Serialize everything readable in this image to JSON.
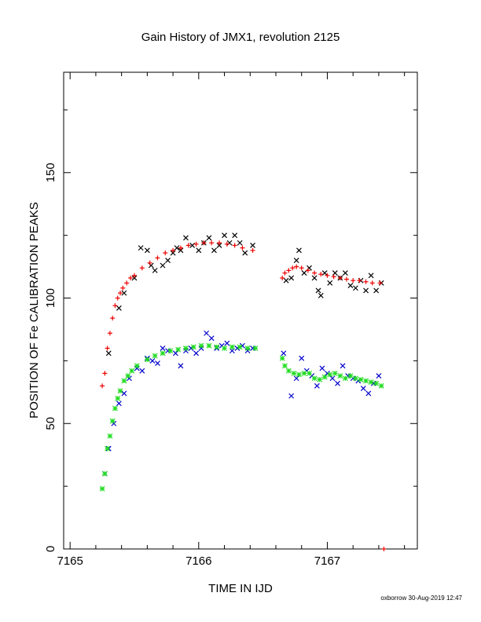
{
  "footer": "oxborrow 30-Aug-2019 12:47",
  "chart_data": {
    "type": "scatter",
    "title": "Gain History of JMX1, revolution 2125",
    "xlabel": "TIME IN IJD",
    "ylabel": "POSITION OF Fe CALIBRATION PEAKS",
    "xlim": [
      7164.95,
      7167.7
    ],
    "ylim": [
      0,
      190
    ],
    "xticks": [
      7165,
      7166,
      7167
    ],
    "yticks": [
      0,
      50,
      100,
      150
    ],
    "grid": false,
    "series": [
      {
        "marker": "x",
        "color": "#000000",
        "points": [
          [
            7165.3,
            78
          ],
          [
            7165.38,
            96
          ],
          [
            7165.42,
            102
          ],
          [
            7165.5,
            108
          ],
          [
            7165.55,
            120
          ],
          [
            7165.6,
            119
          ],
          [
            7165.63,
            113
          ],
          [
            7165.66,
            111
          ],
          [
            7165.72,
            113
          ],
          [
            7165.76,
            115
          ],
          [
            7165.8,
            118
          ],
          [
            7165.83,
            120
          ],
          [
            7165.86,
            119
          ],
          [
            7165.9,
            124
          ],
          [
            7165.95,
            121
          ],
          [
            7166.0,
            119
          ],
          [
            7166.04,
            122
          ],
          [
            7166.08,
            124
          ],
          [
            7166.12,
            119
          ],
          [
            7166.16,
            121
          ],
          [
            7166.2,
            125
          ],
          [
            7166.24,
            122
          ],
          [
            7166.28,
            125
          ],
          [
            7166.32,
            122
          ],
          [
            7166.36,
            118
          ],
          [
            7166.42,
            121
          ],
          [
            7166.68,
            107
          ],
          [
            7166.72,
            108
          ],
          [
            7166.76,
            115
          ],
          [
            7166.78,
            119
          ],
          [
            7166.82,
            110
          ],
          [
            7166.86,
            112
          ],
          [
            7166.9,
            108
          ],
          [
            7166.93,
            103
          ],
          [
            7166.95,
            101
          ],
          [
            7166.98,
            110
          ],
          [
            7167.02,
            106
          ],
          [
            7167.06,
            110
          ],
          [
            7167.1,
            108
          ],
          [
            7167.14,
            110
          ],
          [
            7167.18,
            105
          ],
          [
            7167.22,
            104
          ],
          [
            7167.26,
            107
          ],
          [
            7167.3,
            103
          ],
          [
            7167.34,
            109
          ],
          [
            7167.38,
            103
          ],
          [
            7167.42,
            106
          ]
        ]
      },
      {
        "marker": "+",
        "color": "#ee0000",
        "points": [
          [
            7165.25,
            65
          ],
          [
            7165.27,
            70
          ],
          [
            7165.29,
            80
          ],
          [
            7165.31,
            86
          ],
          [
            7165.33,
            92
          ],
          [
            7165.35,
            97
          ],
          [
            7165.37,
            100
          ],
          [
            7165.39,
            102
          ],
          [
            7165.41,
            104
          ],
          [
            7165.44,
            106
          ],
          [
            7165.47,
            108
          ],
          [
            7165.5,
            109
          ],
          [
            7165.56,
            112
          ],
          [
            7165.62,
            114
          ],
          [
            7165.68,
            116
          ],
          [
            7165.74,
            118
          ],
          [
            7165.8,
            119
          ],
          [
            7165.86,
            120
          ],
          [
            7165.92,
            121
          ],
          [
            7165.98,
            121.5
          ],
          [
            7166.04,
            122
          ],
          [
            7166.1,
            122
          ],
          [
            7166.16,
            122
          ],
          [
            7166.22,
            121.5
          ],
          [
            7166.28,
            121
          ],
          [
            7166.34,
            120
          ],
          [
            7166.42,
            119
          ],
          [
            7166.65,
            108
          ],
          [
            7166.67,
            110
          ],
          [
            7166.7,
            111
          ],
          [
            7166.73,
            112
          ],
          [
            7166.76,
            112.5
          ],
          [
            7166.8,
            112
          ],
          [
            7166.85,
            111
          ],
          [
            7166.9,
            110
          ],
          [
            7166.95,
            109.5
          ],
          [
            7167.0,
            109
          ],
          [
            7167.05,
            108.5
          ],
          [
            7167.1,
            108
          ],
          [
            7167.15,
            107.5
          ],
          [
            7167.2,
            107
          ],
          [
            7167.25,
            107
          ],
          [
            7167.3,
            106.5
          ],
          [
            7167.35,
            106
          ],
          [
            7167.41,
            106
          ],
          [
            7167.44,
            0
          ]
        ]
      },
      {
        "marker": "x",
        "color": "#0000cc",
        "points": [
          [
            7165.27,
            30
          ],
          [
            7165.3,
            40
          ],
          [
            7165.34,
            50
          ],
          [
            7165.38,
            58
          ],
          [
            7165.42,
            62
          ],
          [
            7165.46,
            68
          ],
          [
            7165.52,
            72
          ],
          [
            7165.56,
            71
          ],
          [
            7165.6,
            76
          ],
          [
            7165.64,
            75
          ],
          [
            7165.68,
            74
          ],
          [
            7165.72,
            80
          ],
          [
            7165.76,
            79
          ],
          [
            7165.82,
            78
          ],
          [
            7165.86,
            73
          ],
          [
            7165.9,
            79
          ],
          [
            7165.94,
            80
          ],
          [
            7165.98,
            78
          ],
          [
            7166.02,
            80
          ],
          [
            7166.06,
            86
          ],
          [
            7166.1,
            84
          ],
          [
            7166.14,
            80
          ],
          [
            7166.18,
            81
          ],
          [
            7166.22,
            82
          ],
          [
            7166.26,
            79
          ],
          [
            7166.3,
            80
          ],
          [
            7166.34,
            81
          ],
          [
            7166.38,
            79
          ],
          [
            7166.42,
            80
          ],
          [
            7166.66,
            78
          ],
          [
            7166.72,
            61
          ],
          [
            7166.76,
            68
          ],
          [
            7166.8,
            76
          ],
          [
            7166.84,
            71
          ],
          [
            7166.88,
            69
          ],
          [
            7166.92,
            65
          ],
          [
            7166.96,
            72
          ],
          [
            7167.0,
            70
          ],
          [
            7167.04,
            68
          ],
          [
            7167.08,
            66
          ],
          [
            7167.12,
            73
          ],
          [
            7167.16,
            69
          ],
          [
            7167.2,
            68
          ],
          [
            7167.24,
            67
          ],
          [
            7167.28,
            64
          ],
          [
            7167.32,
            62
          ],
          [
            7167.36,
            66
          ],
          [
            7167.4,
            69
          ]
        ]
      },
      {
        "marker": "*",
        "color": "#22dd22",
        "points": [
          [
            7165.25,
            24
          ],
          [
            7165.27,
            30
          ],
          [
            7165.29,
            40
          ],
          [
            7165.31,
            45
          ],
          [
            7165.33,
            51
          ],
          [
            7165.35,
            56
          ],
          [
            7165.37,
            60
          ],
          [
            7165.39,
            63
          ],
          [
            7165.42,
            67
          ],
          [
            7165.45,
            69
          ],
          [
            7165.48,
            71
          ],
          [
            7165.52,
            73
          ],
          [
            7165.6,
            75.5
          ],
          [
            7165.66,
            77
          ],
          [
            7165.72,
            78
          ],
          [
            7165.78,
            79
          ],
          [
            7165.84,
            79.5
          ],
          [
            7165.9,
            80
          ],
          [
            7165.96,
            80.5
          ],
          [
            7166.02,
            81
          ],
          [
            7166.08,
            81
          ],
          [
            7166.14,
            80.5
          ],
          [
            7166.2,
            80
          ],
          [
            7166.26,
            80.5
          ],
          [
            7166.32,
            80.5
          ],
          [
            7166.38,
            80
          ],
          [
            7166.44,
            80
          ],
          [
            7166.65,
            76
          ],
          [
            7166.67,
            73
          ],
          [
            7166.7,
            71
          ],
          [
            7166.74,
            70
          ],
          [
            7166.78,
            69.5
          ],
          [
            7166.82,
            70
          ],
          [
            7166.86,
            70
          ],
          [
            7166.9,
            68
          ],
          [
            7166.94,
            67.5
          ],
          [
            7166.98,
            68.5
          ],
          [
            7167.02,
            69.5
          ],
          [
            7167.06,
            70
          ],
          [
            7167.1,
            69
          ],
          [
            7167.14,
            68
          ],
          [
            7167.18,
            69
          ],
          [
            7167.22,
            68
          ],
          [
            7167.26,
            67.5
          ],
          [
            7167.3,
            67
          ],
          [
            7167.34,
            66.5
          ],
          [
            7167.38,
            66
          ],
          [
            7167.42,
            65
          ]
        ]
      }
    ]
  }
}
